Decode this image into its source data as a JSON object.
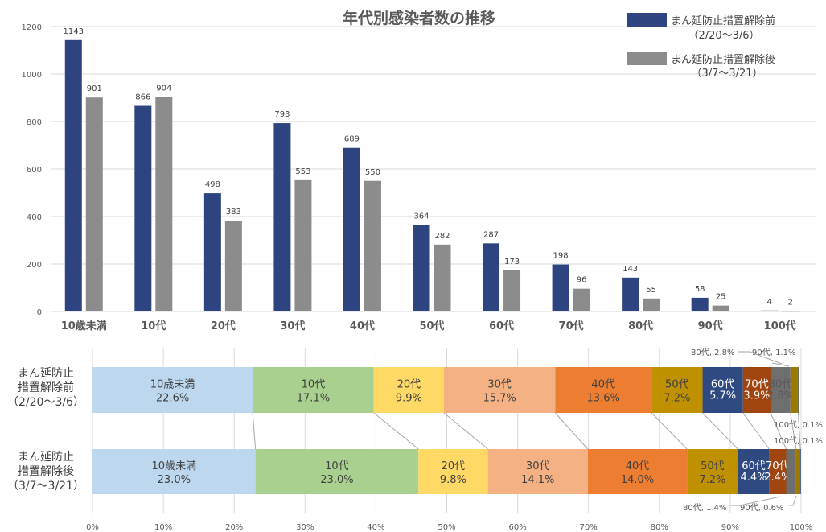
{
  "chart_data": [
    {
      "type": "bar",
      "title": "年代別感染者数の推移",
      "xlabel": "",
      "ylabel": "",
      "ylim": [
        0,
        1200
      ],
      "yticks": [
        "0",
        "200",
        "400",
        "600",
        "800",
        "1000",
        "1200"
      ],
      "grid": true,
      "legend_position": "top-right",
      "categories": [
        "10歳未満",
        "10代",
        "20代",
        "30代",
        "40代",
        "50代",
        "60代",
        "70代",
        "80代",
        "90代",
        "100代"
      ],
      "series": [
        {
          "name": "まん延防止措置解除前",
          "name_sub": "（2/20～3/6）",
          "color": "#2E4480",
          "values": [
            1143,
            866,
            498,
            793,
            689,
            364,
            287,
            198,
            143,
            58,
            4
          ]
        },
        {
          "name": "まん延防止措置解除後",
          "name_sub": "（3/7～3/21）",
          "color": "#8C8C8C",
          "values": [
            901,
            904,
            383,
            553,
            550,
            282,
            173,
            96,
            55,
            25,
            2
          ]
        }
      ]
    },
    {
      "type": "bar",
      "orientation": "horizontal-stacked-100",
      "xlim": [
        0,
        100
      ],
      "xticks": [
        "0%",
        "10%",
        "20%",
        "30%",
        "40%",
        "50%",
        "60%",
        "70%",
        "80%",
        "90%",
        "100%"
      ],
      "grid": true,
      "rows": [
        {
          "label_lines": [
            "まん延防止",
            "措置解除前",
            "（2/20～3/6）"
          ]
        },
        {
          "label_lines": [
            "まん延防止",
            "措置解除後",
            "（3/7～3/21）"
          ]
        }
      ],
      "segments": [
        {
          "name": "10歳未満",
          "color": "#BDD7EE",
          "text": "#404040",
          "values": [
            22.6,
            23.0
          ],
          "labels": [
            "22.6%",
            "23.0%"
          ]
        },
        {
          "name": "10代",
          "color": "#A9D08E",
          "text": "#404040",
          "values": [
            17.1,
            23.0
          ],
          "labels": [
            "17.1%",
            "23.0%"
          ]
        },
        {
          "name": "20代",
          "color": "#FFD966",
          "text": "#404040",
          "values": [
            9.9,
            9.8
          ],
          "labels": [
            "9.9%",
            "9.8%"
          ]
        },
        {
          "name": "30代",
          "color": "#F4B183",
          "text": "#404040",
          "values": [
            15.7,
            14.1
          ],
          "labels": [
            "15.7%",
            "14.1%"
          ]
        },
        {
          "name": "40代",
          "color": "#ED7D31",
          "text": "#404040",
          "values": [
            13.6,
            14.0
          ],
          "labels": [
            "13.6%",
            "14.0%"
          ]
        },
        {
          "name": "50代",
          "color": "#BF9000",
          "text": "#404040",
          "values": [
            7.2,
            7.2
          ],
          "labels": [
            "7.2%",
            "7.2%"
          ]
        },
        {
          "name": "60代",
          "color": "#2F4A80",
          "text": "#FFFFFF",
          "values": [
            5.7,
            4.4
          ],
          "labels": [
            "5.7%",
            "4.4%"
          ]
        },
        {
          "name": "70代",
          "color": "#A0450F",
          "text": "#FFFFFF",
          "values": [
            3.9,
            2.4
          ],
          "labels": [
            "3.9%",
            "2.4%"
          ]
        },
        {
          "name": "80代",
          "color": "#6E6E6E",
          "text": "#595959",
          "values": [
            2.8,
            1.4
          ],
          "labels": [
            "2.8%",
            "1.4%"
          ]
        },
        {
          "name": "90代",
          "color": "#9C7A00",
          "text": "#595959",
          "values": [
            1.1,
            0.6
          ],
          "labels": [
            "1.1%",
            "0.6%"
          ]
        },
        {
          "name": "100代",
          "color": "#3C5A8C",
          "text": "#595959",
          "values": [
            0.1,
            0.1
          ],
          "labels": [
            "0.1%",
            "0.1%"
          ]
        }
      ],
      "callouts": [
        {
          "text": "80代, 2.8%"
        },
        {
          "text": "90代, 1.1%"
        },
        {
          "text": "100代, 0.1%"
        },
        {
          "text": "100代, 0.1%"
        },
        {
          "text": "80代, 1.4%"
        },
        {
          "text": "90代, 0.6%"
        }
      ]
    }
  ]
}
